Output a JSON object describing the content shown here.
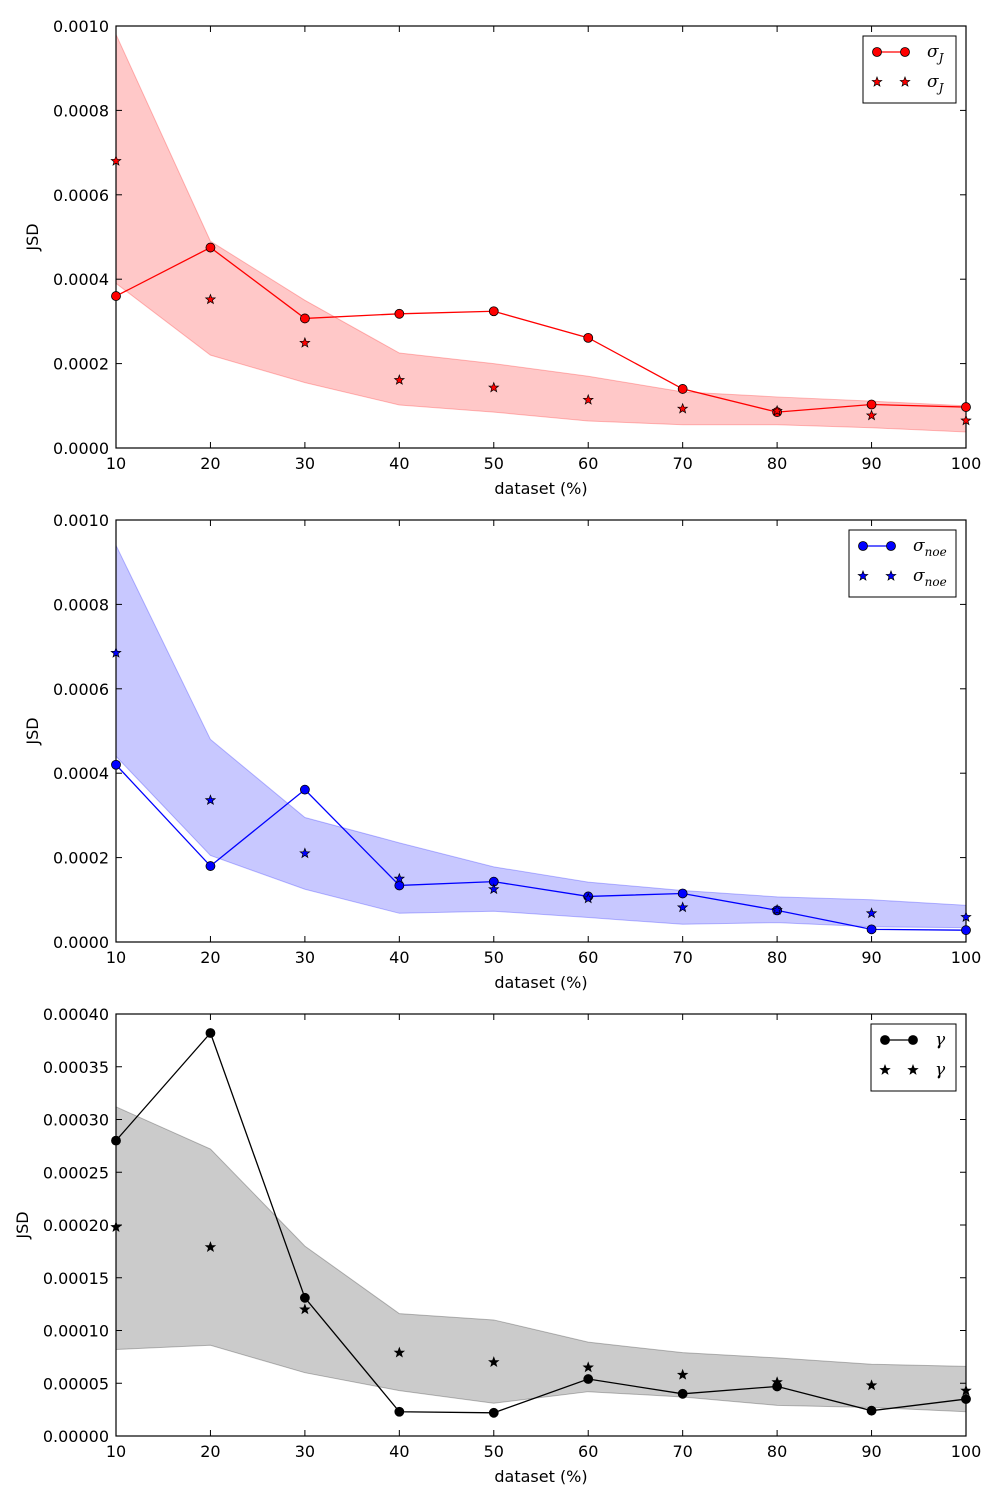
{
  "chart_data": [
    {
      "type": "line",
      "xlabel": "dataset (%)",
      "ylabel": "JSD",
      "x": [
        10,
        20,
        30,
        40,
        50,
        60,
        70,
        80,
        90,
        100
      ],
      "xlim": [
        10,
        100
      ],
      "ylim": [
        0,
        0.001
      ],
      "x_ticks": [
        "10",
        "20",
        "30",
        "40",
        "50",
        "60",
        "70",
        "80",
        "90",
        "100"
      ],
      "y_ticks": [
        "0.0000",
        "0.0002",
        "0.0004",
        "0.0006",
        "0.0008",
        "0.0010"
      ],
      "legend_position": "top-right",
      "color": "#ff0000",
      "band_color": "#ffc8c8",
      "series": [
        {
          "name": "σ_J",
          "legend_text": "σJ",
          "style": "line-circle",
          "values": [
            0.00036,
            0.000475,
            0.000307,
            0.000318,
            0.000324,
            0.000261,
            0.00014,
            8.5e-05,
            0.000103,
            9.7e-05
          ]
        },
        {
          "name": "σ_J",
          "legend_text": "σJ",
          "style": "star",
          "values": [
            0.00068,
            0.000352,
            0.000249,
            0.000161,
            0.000143,
            0.000114,
            9.3e-05,
            8.8e-05,
            7.7e-05,
            6.5e-05
          ]
        }
      ],
      "band": {
        "upper": [
          0.00098,
          0.00049,
          0.00035,
          0.000225,
          0.0002,
          0.00017,
          0.000133,
          0.000121,
          0.000111,
          0.0001
        ],
        "lower": [
          0.00039,
          0.00022,
          0.000155,
          0.000102,
          8.5e-05,
          6.4e-05,
          5.5e-05,
          5.5e-05,
          4.8e-05,
          3.8e-05
        ]
      }
    },
    {
      "type": "line",
      "xlabel": "dataset (%)",
      "ylabel": "JSD",
      "x": [
        10,
        20,
        30,
        40,
        50,
        60,
        70,
        80,
        90,
        100
      ],
      "xlim": [
        10,
        100
      ],
      "ylim": [
        0,
        0.001
      ],
      "x_ticks": [
        "10",
        "20",
        "30",
        "40",
        "50",
        "60",
        "70",
        "80",
        "90",
        "100"
      ],
      "y_ticks": [
        "0.0000",
        "0.0002",
        "0.0004",
        "0.0006",
        "0.0008",
        "0.0010"
      ],
      "legend_position": "top-right",
      "color": "#0000ff",
      "band_color": "#c8c8ff",
      "series": [
        {
          "name": "σ_noe",
          "legend_text": "σnoe",
          "style": "line-circle",
          "values": [
            0.00042,
            0.00018,
            0.000361,
            0.000134,
            0.000143,
            0.000108,
            0.000115,
            7.5e-05,
            3e-05,
            2.8e-05
          ]
        },
        {
          "name": "σ_noe",
          "legend_text": "σnoe",
          "style": "star",
          "values": [
            0.000685,
            0.000336,
            0.00021,
            0.00015,
            0.000125,
            0.000103,
            8.2e-05,
            7.6e-05,
            6.8e-05,
            5.9e-05
          ]
        }
      ],
      "band": {
        "upper": [
          0.00094,
          0.00048,
          0.000295,
          0.000235,
          0.000178,
          0.000142,
          0.000122,
          0.000107,
          0.0001,
          8.7e-05
        ],
        "lower": [
          0.00044,
          0.000205,
          0.000125,
          6.8e-05,
          7.3e-05,
          5.8e-05,
          4.2e-05,
          4.6e-05,
          3.6e-05,
          3.4e-05
        ]
      }
    },
    {
      "type": "line",
      "xlabel": "dataset (%)",
      "ylabel": "JSD",
      "x": [
        10,
        20,
        30,
        40,
        50,
        60,
        70,
        80,
        90,
        100
      ],
      "xlim": [
        10,
        100
      ],
      "ylim": [
        0,
        0.0004
      ],
      "x_ticks": [
        "10",
        "20",
        "30",
        "40",
        "50",
        "60",
        "70",
        "80",
        "90",
        "100"
      ],
      "y_ticks": [
        "0.00000",
        "0.00005",
        "0.00010",
        "0.00015",
        "0.00020",
        "0.00025",
        "0.00030",
        "0.00035",
        "0.00040"
      ],
      "legend_position": "top-right",
      "color": "#000000",
      "band_color": "#cbcbcb",
      "series": [
        {
          "name": "γ",
          "legend_text": "γ",
          "style": "line-circle",
          "values": [
            0.00028,
            0.000382,
            0.000131,
            2.3e-05,
            2.2e-05,
            5.4e-05,
            4e-05,
            4.7e-05,
            2.4e-05,
            3.5e-05
          ]
        },
        {
          "name": "γ",
          "legend_text": "γ",
          "style": "star",
          "values": [
            0.000198,
            0.000179,
            0.00012,
            7.9e-05,
            7e-05,
            6.5e-05,
            5.8e-05,
            5.1e-05,
            4.8e-05,
            4.3e-05
          ]
        }
      ],
      "band": {
        "upper": [
          0.000312,
          0.000272,
          0.00018,
          0.000116,
          0.00011,
          8.9e-05,
          7.9e-05,
          7.4e-05,
          6.8e-05,
          6.6e-05
        ],
        "lower": [
          8.2e-05,
          8.6e-05,
          6e-05,
          4.3e-05,
          3.1e-05,
          4.2e-05,
          3.7e-05,
          2.9e-05,
          2.7e-05,
          2.3e-05
        ]
      }
    }
  ]
}
